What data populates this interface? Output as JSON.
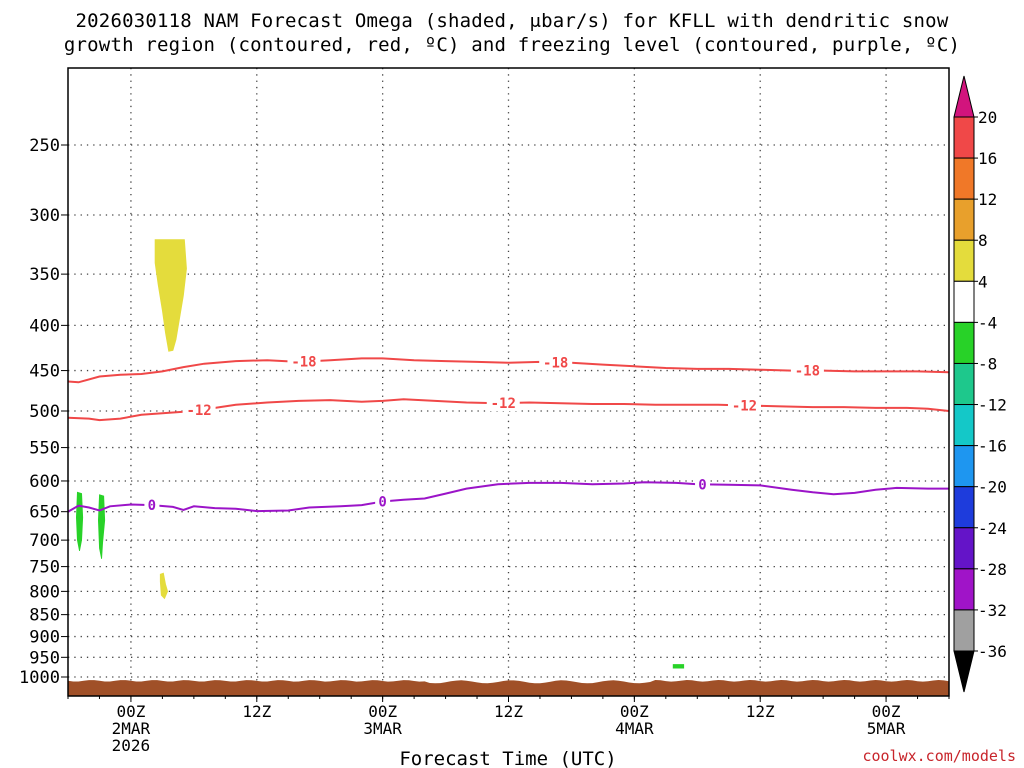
{
  "title_line1": "2026030118 NAM Forecast Omega (shaded, μbar/s) for KFLL with dendritic snow",
  "title_line2": "growth region (contoured, red, ºC) and freezing level (contoured, purple, ºC)",
  "credit": "coolwx.com/models",
  "chart_data": {
    "type": "time-height cross section",
    "xlabel": "Forecast Time (UTC)",
    "x_forecast_hours": [
      0,
      84
    ],
    "x_ticks": [
      {
        "hour": 6,
        "lines": [
          "00Z",
          "2MAR",
          "2026"
        ]
      },
      {
        "hour": 18,
        "lines": [
          "12Z"
        ]
      },
      {
        "hour": 30,
        "lines": [
          "00Z",
          "3MAR"
        ]
      },
      {
        "hour": 42,
        "lines": [
          "12Z"
        ]
      },
      {
        "hour": 54,
        "lines": [
          "00Z",
          "4MAR"
        ]
      },
      {
        "hour": 66,
        "lines": [
          "12Z"
        ]
      },
      {
        "hour": 78,
        "lines": [
          "00Z",
          "5MAR"
        ]
      }
    ],
    "y_levels_hpa": [
      250,
      300,
      350,
      400,
      450,
      500,
      550,
      600,
      650,
      700,
      750,
      800,
      850,
      900,
      950,
      1000
    ],
    "y_range_hpa": [
      200,
      1030
    ],
    "grid": "dotted",
    "contours": [
      {
        "name": "-18",
        "color": "#f04848",
        "label_hours": [
          22.5,
          46.5,
          70.5
        ],
        "points": [
          [
            0,
            463
          ],
          [
            1,
            464
          ],
          [
            3,
            457
          ],
          [
            5,
            455
          ],
          [
            7,
            454
          ],
          [
            9,
            451
          ],
          [
            11,
            446
          ],
          [
            13,
            442
          ],
          [
            16,
            439
          ],
          [
            19,
            438
          ],
          [
            22,
            440
          ],
          [
            25,
            438
          ],
          [
            28,
            436
          ],
          [
            30,
            436
          ],
          [
            33,
            438
          ],
          [
            36,
            439
          ],
          [
            39,
            440
          ],
          [
            42,
            441
          ],
          [
            45,
            440
          ],
          [
            48,
            441
          ],
          [
            51,
            443
          ],
          [
            54,
            445
          ],
          [
            57,
            447
          ],
          [
            60,
            448
          ],
          [
            63,
            448
          ],
          [
            66,
            449
          ],
          [
            69,
            450
          ],
          [
            72,
            450
          ],
          [
            75,
            451
          ],
          [
            78,
            451
          ],
          [
            81,
            451
          ],
          [
            84,
            452
          ]
        ]
      },
      {
        "name": "-12",
        "color": "#f04848",
        "label_hours": [
          12.5,
          41.5,
          64.5
        ],
        "points": [
          [
            0,
            509
          ],
          [
            2,
            510
          ],
          [
            3,
            512
          ],
          [
            5,
            510
          ],
          [
            7,
            505
          ],
          [
            9,
            503
          ],
          [
            11,
            501
          ],
          [
            13,
            498
          ],
          [
            16,
            492
          ],
          [
            19,
            489
          ],
          [
            22,
            487
          ],
          [
            25,
            486
          ],
          [
            28,
            488
          ],
          [
            30,
            487
          ],
          [
            32,
            485
          ],
          [
            35,
            487
          ],
          [
            38,
            489
          ],
          [
            41,
            490
          ],
          [
            44,
            489
          ],
          [
            47,
            490
          ],
          [
            50,
            491
          ],
          [
            53,
            491
          ],
          [
            56,
            492
          ],
          [
            59,
            492
          ],
          [
            62,
            492
          ],
          [
            65,
            493
          ],
          [
            68,
            494
          ],
          [
            71,
            495
          ],
          [
            74,
            495
          ],
          [
            77,
            496
          ],
          [
            80,
            496
          ],
          [
            82,
            497
          ],
          [
            84,
            500
          ]
        ]
      },
      {
        "name": "0",
        "color": "#9b14c8",
        "label_hours": [
          8,
          30,
          60.5
        ],
        "points": [
          [
            0,
            650
          ],
          [
            1,
            640
          ],
          [
            2,
            643
          ],
          [
            3,
            648
          ],
          [
            4,
            641
          ],
          [
            6,
            638
          ],
          [
            8,
            639
          ],
          [
            10,
            642
          ],
          [
            11,
            647
          ],
          [
            12,
            641
          ],
          [
            14,
            644
          ],
          [
            16,
            645
          ],
          [
            18,
            649
          ],
          [
            21,
            648
          ],
          [
            23,
            643
          ],
          [
            26,
            641
          ],
          [
            28,
            639
          ],
          [
            30,
            633
          ],
          [
            32,
            630
          ],
          [
            34,
            628
          ],
          [
            36,
            620
          ],
          [
            38,
            612
          ],
          [
            41,
            605
          ],
          [
            44,
            603
          ],
          [
            47,
            603
          ],
          [
            50,
            605
          ],
          [
            53,
            604
          ],
          [
            55,
            602
          ],
          [
            58,
            603
          ],
          [
            60,
            605
          ],
          [
            63,
            606
          ],
          [
            66,
            607
          ],
          [
            69,
            614
          ],
          [
            71,
            618
          ],
          [
            73,
            621
          ],
          [
            75,
            619
          ],
          [
            77,
            614
          ],
          [
            79,
            611
          ],
          [
            82,
            612
          ],
          [
            84,
            612
          ]
        ]
      }
    ],
    "shaded_omega_regions": [
      {
        "color": "#e4dc3c",
        "value_range": [
          4,
          8
        ],
        "polygon": [
          [
            8.3,
            320
          ],
          [
            11.1,
            320
          ],
          [
            11.3,
            345
          ],
          [
            11.0,
            370
          ],
          [
            10.6,
            395
          ],
          [
            10.3,
            415
          ],
          [
            10.0,
            427
          ],
          [
            9.6,
            428
          ],
          [
            9.3,
            408
          ],
          [
            9.0,
            385
          ],
          [
            8.6,
            360
          ],
          [
            8.3,
            340
          ]
        ]
      },
      {
        "color": "#e4dc3c",
        "value_range": [
          4,
          8
        ],
        "polygon": [
          [
            8.8,
            765
          ],
          [
            9.1,
            763
          ],
          [
            9.3,
            785
          ],
          [
            9.5,
            800
          ],
          [
            9.2,
            815
          ],
          [
            8.9,
            808
          ],
          [
            8.8,
            780
          ]
        ]
      },
      {
        "color": "#28d228",
        "value_range": [
          -8,
          -4
        ],
        "polygon": [
          [
            0.9,
            618
          ],
          [
            1.3,
            620
          ],
          [
            1.4,
            660
          ],
          [
            1.3,
            700
          ],
          [
            1.1,
            720
          ],
          [
            0.9,
            700
          ],
          [
            0.8,
            660
          ]
        ]
      },
      {
        "color": "#28d228",
        "value_range": [
          -8,
          -4
        ],
        "polygon": [
          [
            3.0,
            622
          ],
          [
            3.4,
            624
          ],
          [
            3.5,
            665
          ],
          [
            3.3,
            705
          ],
          [
            3.2,
            735
          ],
          [
            3.0,
            715
          ],
          [
            2.9,
            665
          ]
        ]
      },
      {
        "color": "#28d228",
        "value_range": [
          -8,
          -4
        ],
        "polygon": [
          [
            57.7,
            968
          ],
          [
            58.7,
            968
          ],
          [
            58.7,
            977
          ],
          [
            57.7,
            977
          ]
        ]
      }
    ],
    "ground": {
      "color": "#a05028",
      "top_hpa": 1010
    },
    "colorbar": {
      "labels": [
        "20",
        "16",
        "12",
        "8",
        "4",
        "-4",
        "-8",
        "-12",
        "-16",
        "-20",
        "-24",
        "-28",
        "-32",
        "-36"
      ],
      "colors": [
        "#f04848",
        "#f07828",
        "#e8a02c",
        "#e4dc3c",
        "#ffffff",
        "#28d228",
        "#1ec88c",
        "#14c8c8",
        "#1e96f0",
        "#1e3cdc",
        "#6414c8",
        "#a014c8",
        "#a0a0a0"
      ],
      "top_cap_color": "#d2147d",
      "bottom_cap_color": "#000000"
    }
  }
}
